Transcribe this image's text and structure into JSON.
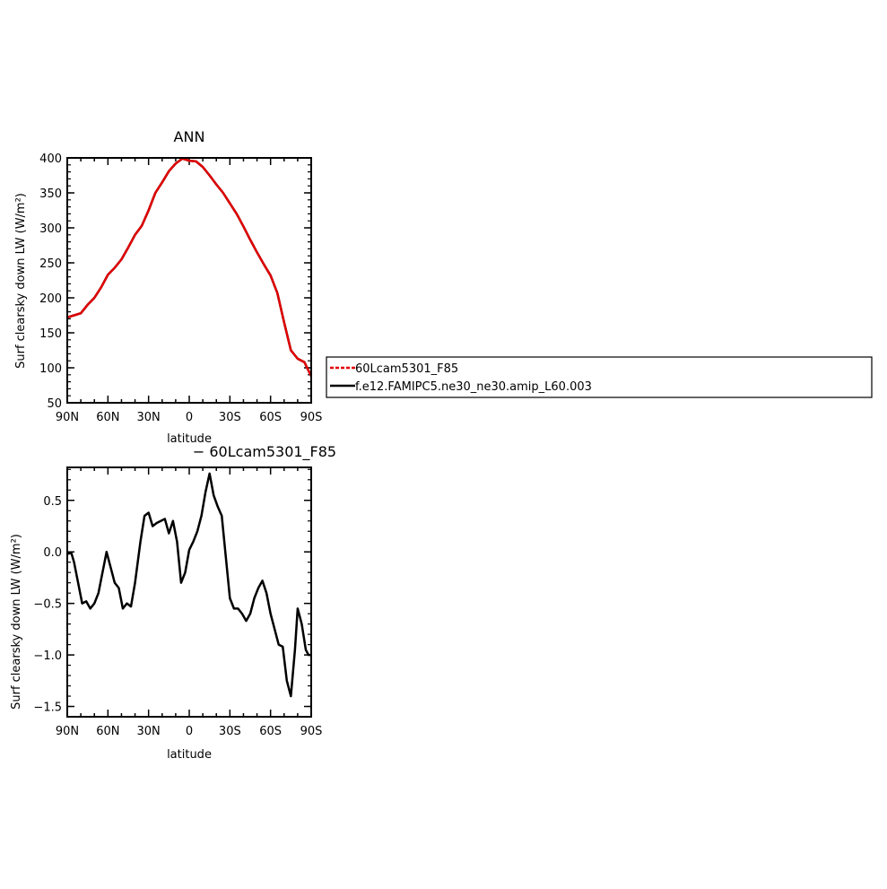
{
  "chart_data": [
    {
      "type": "line",
      "title": "ANN",
      "xlabel": "latitude",
      "ylabel": "Surf clearsky down LW (W/m²)",
      "ylim": [
        50,
        400
      ],
      "yticks": [
        "50",
        "100",
        "150",
        "200",
        "250",
        "300",
        "350",
        "400"
      ],
      "xlim": [
        90,
        -90
      ],
      "xticks": [
        "90N",
        "60N",
        "30N",
        "0",
        "30S",
        "60S",
        "90S"
      ],
      "x": [
        90,
        85,
        80,
        75,
        70,
        65,
        60,
        55,
        50,
        45,
        40,
        35,
        30,
        25,
        20,
        15,
        10,
        5,
        0,
        -5,
        -10,
        -15,
        -20,
        -25,
        -30,
        -35,
        -40,
        -45,
        -50,
        -55,
        -60,
        -65,
        -70,
        -75,
        -80,
        -85,
        -90
      ],
      "series": [
        {
          "name": "60Lcam5301_F85",
          "color": "#e00000",
          "style": "dashed",
          "values": [
            172,
            175,
            178,
            190,
            200,
            215,
            233,
            243,
            255,
            272,
            290,
            303,
            325,
            350,
            365,
            381,
            392,
            399,
            396,
            395,
            387,
            375,
            362,
            350,
            335,
            320,
            302,
            283,
            265,
            248,
            232,
            207,
            165,
            125,
            113,
            108,
            88
          ]
        },
        {
          "name": "f.e12.FAMIPC5.ne30_ne30.amip_L60.003",
          "color": "#000000",
          "style": "solid",
          "values": [
            172,
            175,
            178,
            190,
            200,
            215,
            233,
            243,
            255,
            272,
            290,
            303,
            325,
            350,
            365,
            381,
            392,
            399,
            396,
            395,
            387,
            375,
            362,
            350,
            335,
            320,
            302,
            283,
            265,
            248,
            232,
            207,
            165,
            125,
            113,
            108,
            88
          ]
        }
      ],
      "legend": {
        "placement": "right",
        "entries": [
          "60Lcam5301_F85",
          "f.e12.FAMIPC5.ne30_ne30.amip_L60.003"
        ]
      }
    },
    {
      "type": "line",
      "title": "− 60Lcam5301_F85",
      "xlabel": "latitude",
      "ylabel": "Surf clearsky down LW (W/m²)",
      "ylim": [
        -1.6,
        0.82
      ],
      "yticks": [
        "−1.5",
        "−1.0",
        "−0.5",
        "0.0",
        "0.5"
      ],
      "ytick_values": [
        -1.5,
        -1.0,
        -0.5,
        0.0,
        0.5
      ],
      "xlim": [
        90,
        -90
      ],
      "xticks": [
        "90N",
        "60N",
        "30N",
        "0",
        "30S",
        "60S",
        "90S"
      ],
      "x": [
        90,
        87,
        85,
        82,
        79,
        76,
        73,
        70,
        67,
        64,
        61,
        58,
        55,
        52,
        49,
        46,
        43,
        40,
        36,
        33,
        30,
        27,
        24,
        21,
        18,
        15,
        12,
        9,
        6,
        3,
        0,
        -3,
        -6,
        -9,
        -12,
        -15,
        -18,
        -21,
        -24,
        -27,
        -30,
        -33,
        -36,
        -39,
        -42,
        -45,
        -48,
        -51,
        -54,
        -57,
        -60,
        -63,
        -66,
        -69,
        -72,
        -75,
        -78,
        -80,
        -83,
        -86,
        -88,
        -90
      ],
      "series": [
        {
          "values": [
            -0.02,
            -0.01,
            -0.1,
            -0.3,
            -0.5,
            -0.48,
            -0.55,
            -0.5,
            -0.4,
            -0.2,
            0.0,
            -0.15,
            -0.3,
            -0.35,
            -0.55,
            -0.5,
            -0.53,
            -0.3,
            0.1,
            0.35,
            0.38,
            0.25,
            0.28,
            0.3,
            0.32,
            0.18,
            0.3,
            0.1,
            -0.3,
            -0.2,
            0.02,
            0.1,
            0.2,
            0.35,
            0.58,
            0.76,
            0.55,
            0.44,
            0.35,
            -0.05,
            -0.45,
            -0.55,
            -0.55,
            -0.6,
            -0.67,
            -0.6,
            -0.45,
            -0.35,
            -0.28,
            -0.4,
            -0.6,
            -0.75,
            -0.9,
            -0.92,
            -1.25,
            -1.4,
            -0.95,
            -0.55,
            -0.7,
            -0.95,
            -1.0,
            -1.0
          ]
        }
      ]
    }
  ]
}
